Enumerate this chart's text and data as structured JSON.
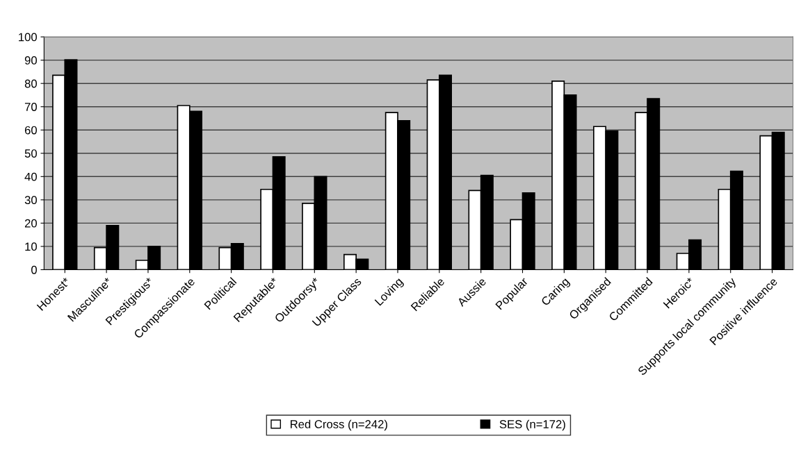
{
  "chart_data": {
    "type": "bar",
    "categories": [
      "Honest*",
      "Masculine*",
      "Prestigious*",
      "Compassionate",
      "Political",
      "Reputable*",
      "Outdoorsy*",
      "Upper Class",
      "Loving",
      "Reliable",
      "Aussie",
      "Popular",
      "Caring",
      "Organised",
      "Committed",
      "Heroic*",
      "Supports local community",
      "Positive influence"
    ],
    "series": [
      {
        "name": "Red Cross (n=242)",
        "color": "#ffffff",
        "values": [
          83.5,
          9.5,
          4,
          70.5,
          9.5,
          34.5,
          28.5,
          6.5,
          67.5,
          81.5,
          34,
          21.5,
          81,
          61.5,
          67.5,
          7,
          34.5,
          57.5
        ]
      },
      {
        "name": "SES (n=172)",
        "color": "#000000",
        "values": [
          90.2,
          19,
          10,
          68,
          11.2,
          48.5,
          40,
          4.5,
          64,
          83.5,
          40.5,
          33,
          75,
          59.5,
          73.5,
          12.8,
          42.3,
          59
        ]
      }
    ],
    "ylim": [
      0,
      100
    ],
    "yticks": [
      0,
      10,
      20,
      30,
      40,
      50,
      60,
      70,
      80,
      90,
      100
    ],
    "grid": "y",
    "legend": "bottom"
  }
}
